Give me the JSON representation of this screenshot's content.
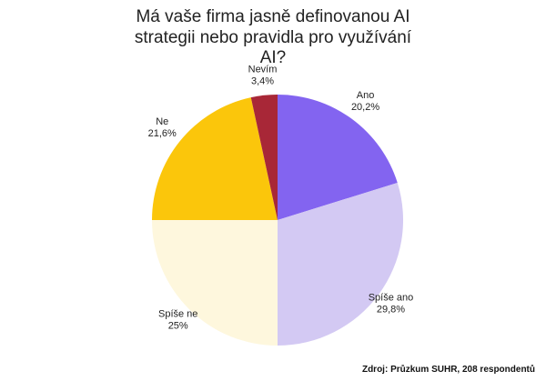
{
  "chart_data": {
    "type": "pie",
    "title_lines": [
      "Má vaše firma jasně definovanou AI",
      "strategii nebo pravidla pro využívání",
      "AI?"
    ],
    "slices": [
      {
        "label": "Ano",
        "value": 20.2,
        "value_label": "20,2%",
        "color": "#8364F0"
      },
      {
        "label": "Spíše ano",
        "value": 29.8,
        "value_label": "29,8%",
        "color": "#D3C9F3"
      },
      {
        "label": "Spíše ne",
        "value": 25.0,
        "value_label": "25%",
        "color": "#FEF7DD"
      },
      {
        "label": "Ne",
        "value": 21.6,
        "value_label": "21,6%",
        "color": "#FBC60B"
      },
      {
        "label": "Nevím",
        "value": 3.4,
        "value_label": "3,4%",
        "color": "#A82737"
      }
    ],
    "start": "top",
    "direction": "clockwise",
    "legend": "none",
    "source": "Zdroj: Průzkum SUHR, 208 respondentů"
  }
}
